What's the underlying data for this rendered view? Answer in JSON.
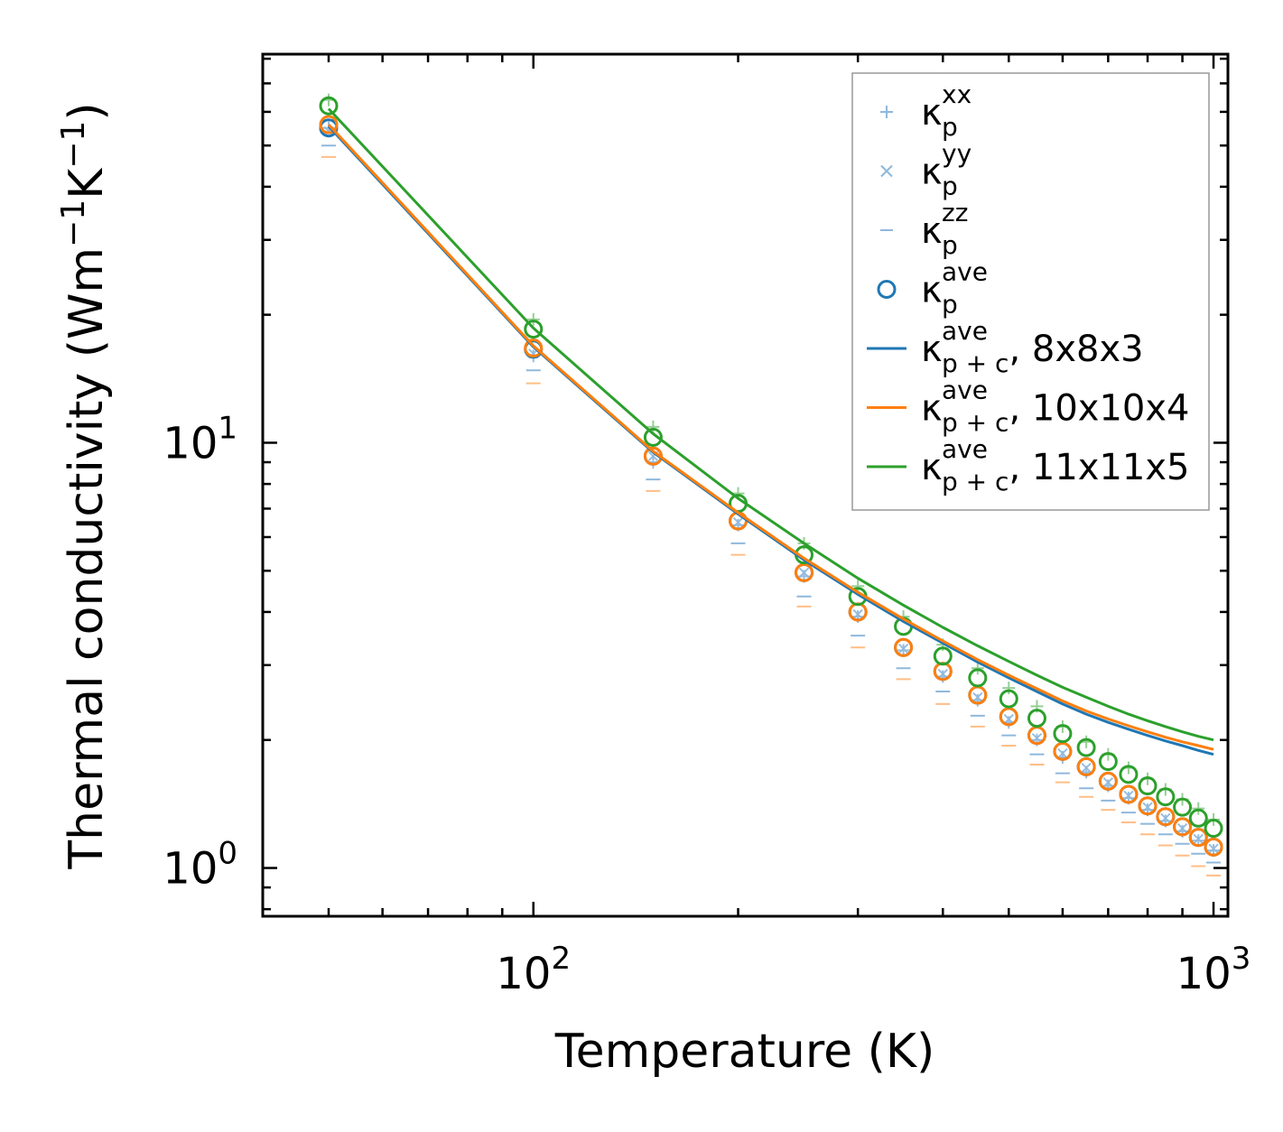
{
  "chart_data": {
    "type": "line",
    "xscale": "log",
    "yscale": "log",
    "xlabel": "Temperature (K)",
    "ylabel_main": "Thermal conductivity (Wm",
    "ylabel_sup1": "−1",
    "ylabel_mid": "K",
    "ylabel_sup2": "−1",
    "ylabel_end": ")",
    "xlim": [
      40,
      1050
    ],
    "ylim": [
      0.77,
      82
    ],
    "x_ticks": [
      {
        "base": "10",
        "exp": "2",
        "value": 100
      },
      {
        "base": "10",
        "exp": "3",
        "value": 1000
      }
    ],
    "y_ticks": [
      {
        "base": "10",
        "exp": "0",
        "value": 1
      },
      {
        "base": "10",
        "exp": "1",
        "value": 10
      }
    ],
    "colors": {
      "blue": "#1f77b4",
      "orange": "#ff7f0e",
      "green": "#2ca02c",
      "light_blue": "#8fb8dc"
    },
    "temperatures": [
      50,
      100,
      150,
      200,
      250,
      300,
      350,
      400,
      450,
      500,
      550,
      600,
      650,
      700,
      750,
      800,
      850,
      900,
      950,
      1000
    ],
    "markers": {
      "kxx_light": [
        55.0,
        16.0,
        9.0,
        6.4,
        4.85,
        3.9,
        3.25,
        2.82,
        2.48,
        2.2,
        2.0,
        1.82,
        1.68,
        1.56,
        1.46,
        1.37,
        1.29,
        1.22,
        1.16,
        1.1
      ],
      "kxx_green": [
        64.0,
        19.5,
        10.9,
        7.6,
        5.8,
        4.6,
        3.9,
        3.35,
        2.95,
        2.65,
        2.4,
        2.15,
        1.98,
        1.85,
        1.72,
        1.62,
        1.53,
        1.45,
        1.38,
        1.3
      ],
      "kyy": [
        54.0,
        16.2,
        9.3,
        6.5,
        4.95,
        3.95,
        3.28,
        2.86,
        2.52,
        2.24,
        2.02,
        1.86,
        1.72,
        1.59,
        1.48,
        1.39,
        1.31,
        1.24,
        1.17,
        1.11
      ],
      "kzz_blue": [
        50.0,
        14.8,
        8.2,
        5.8,
        4.35,
        3.52,
        2.95,
        2.6,
        2.28,
        2.05,
        1.85,
        1.67,
        1.54,
        1.44,
        1.35,
        1.27,
        1.2,
        1.14,
        1.08,
        1.03
      ],
      "kzz_orange": [
        47.0,
        13.8,
        7.7,
        5.45,
        4.12,
        3.3,
        2.78,
        2.43,
        2.15,
        1.94,
        1.75,
        1.59,
        1.47,
        1.37,
        1.28,
        1.2,
        1.13,
        1.07,
        1.01,
        0.96
      ],
      "kave_blue": [
        55.0,
        16.6,
        9.3,
        6.55,
        4.95,
        4.0,
        3.3,
        2.9,
        2.55,
        2.27,
        2.05,
        1.88,
        1.73,
        1.6,
        1.49,
        1.4,
        1.32,
        1.25,
        1.18,
        1.12
      ],
      "kave_orange": [
        56.0,
        16.7,
        9.3,
        6.55,
        4.95,
        4.0,
        3.3,
        2.9,
        2.55,
        2.27,
        2.05,
        1.88,
        1.73,
        1.6,
        1.49,
        1.4,
        1.32,
        1.25,
        1.18,
        1.12
      ],
      "kave_green": [
        62.0,
        18.5,
        10.3,
        7.2,
        5.45,
        4.35,
        3.7,
        3.15,
        2.8,
        2.5,
        2.25,
        2.07,
        1.92,
        1.78,
        1.66,
        1.56,
        1.47,
        1.39,
        1.31,
        1.24
      ]
    },
    "series": [
      {
        "name": "8x8x3",
        "color": "blue",
        "values": [
          55.5,
          16.8,
          9.5,
          6.8,
          5.3,
          4.4,
          3.8,
          3.38,
          3.05,
          2.8,
          2.6,
          2.43,
          2.3,
          2.2,
          2.12,
          2.05,
          1.99,
          1.94,
          1.89,
          1.85
        ]
      },
      {
        "name": "10x10x4",
        "color": "orange",
        "values": [
          56.0,
          16.9,
          9.55,
          6.85,
          5.35,
          4.45,
          3.85,
          3.42,
          3.09,
          2.84,
          2.64,
          2.47,
          2.34,
          2.24,
          2.16,
          2.09,
          2.03,
          1.98,
          1.94,
          1.9
        ]
      },
      {
        "name": "11x11x5",
        "color": "green",
        "values": [
          61.0,
          18.6,
          10.5,
          7.4,
          5.8,
          4.8,
          4.15,
          3.68,
          3.33,
          3.06,
          2.84,
          2.66,
          2.52,
          2.4,
          2.3,
          2.22,
          2.15,
          2.09,
          2.04,
          2.0
        ]
      }
    ],
    "legend": {
      "position": "top-right",
      "entries": [
        {
          "kind": "plus",
          "sym": "κ",
          "sup": "xx",
          "sub": "p",
          "suffix": "",
          "color": "light_blue"
        },
        {
          "kind": "cross",
          "sym": "κ",
          "sup": "yy",
          "sub": "p",
          "suffix": "",
          "color": "light_blue"
        },
        {
          "kind": "dash",
          "sym": "κ",
          "sup": "zz",
          "sub": "p",
          "suffix": "",
          "color": "light_blue"
        },
        {
          "kind": "circle",
          "sym": "κ",
          "sup": "ave",
          "sub": "p",
          "suffix": "",
          "color": "blue"
        },
        {
          "kind": "line",
          "sym": "κ",
          "sup": "ave",
          "sub": "p + c",
          "suffix": ", 8x8x3",
          "color": "blue"
        },
        {
          "kind": "line",
          "sym": "κ",
          "sup": "ave",
          "sub": "p + c",
          "suffix": ", 10x10x4",
          "color": "orange"
        },
        {
          "kind": "line",
          "sym": "κ",
          "sup": "ave",
          "sub": "p + c",
          "suffix": ", 11x11x5",
          "color": "green"
        }
      ]
    }
  }
}
